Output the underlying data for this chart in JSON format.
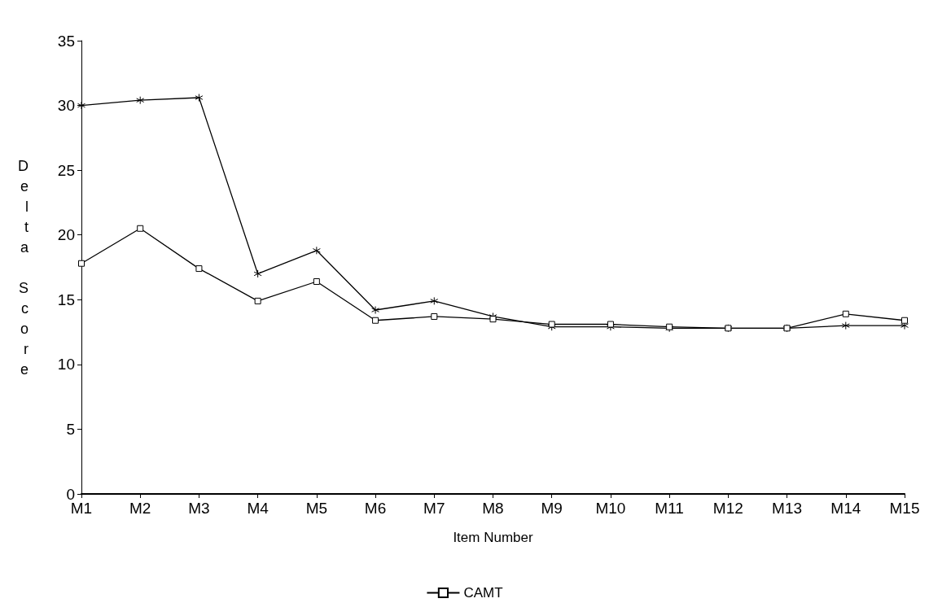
{
  "chart_data": {
    "type": "line",
    "xlabel": "Item Number",
    "ylabel": "Delta Score",
    "categories": [
      "M1",
      "M2",
      "M3",
      "M4",
      "M5",
      "M6",
      "M7",
      "M8",
      "M9",
      "M10",
      "M11",
      "M12",
      "M13",
      "M14",
      "M15"
    ],
    "series": [
      {
        "color": "#000000",
        "marker": "cross",
        "values": [
          30,
          30.4,
          30.6,
          17,
          18.8,
          14.2,
          14.9,
          13.7,
          12.9,
          12.9,
          12.8,
          12.8,
          12.8,
          13,
          13
        ]
      },
      {
        "name": "CAMT",
        "color": "#000000",
        "marker": "square",
        "values": [
          17.8,
          20.5,
          17.4,
          14.9,
          16.4,
          13.4,
          13.7,
          13.5,
          13.1,
          13.1,
          12.9,
          12.8,
          12.8,
          13.9,
          13.4
        ]
      }
    ],
    "ylim": [
      0,
      35
    ],
    "yticks": [
      0,
      5,
      10,
      15,
      20,
      25,
      30,
      35
    ],
    "grid": false,
    "legend": "bottom",
    "line_style": "solid"
  }
}
